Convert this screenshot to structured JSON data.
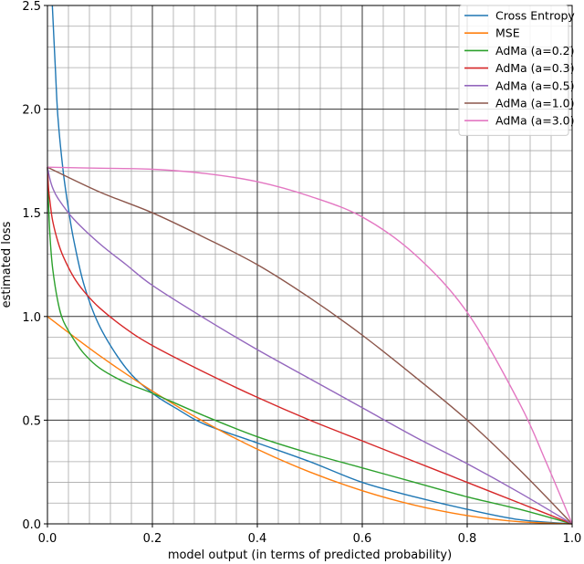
{
  "chart_data": {
    "type": "line",
    "title": "",
    "xlabel": "model output (in terms of predicted probability)",
    "ylabel": "estimated loss",
    "xlim": [
      0,
      1
    ],
    "ylim": [
      0,
      2.5
    ],
    "x_ticks": [
      0.0,
      0.2,
      0.4,
      0.6,
      0.8,
      1.0
    ],
    "x_tick_labels": [
      "0.0",
      "0.2",
      "0.4",
      "0.6",
      "0.8",
      "1.0"
    ],
    "y_ticks": [
      0.0,
      0.5,
      1.0,
      1.5,
      2.0,
      2.5
    ],
    "y_tick_labels": [
      "0.0",
      "0.5",
      "1.0",
      "1.5",
      "2.0",
      "2.5"
    ],
    "grid": "major and minor",
    "legend_position": "top-right",
    "series": [
      {
        "name": "Cross Entropy",
        "color": "#1f77b4",
        "x": [
          0.0093,
          0.015,
          0.02,
          0.03,
          0.04,
          0.05,
          0.07,
          0.1,
          0.15,
          0.2,
          0.25,
          0.3,
          0.4,
          0.5,
          0.6,
          0.7,
          0.8,
          0.9,
          1.0
        ],
        "y": [
          2.5,
          2.2,
          1.96,
          1.7,
          1.52,
          1.37,
          1.15,
          0.95,
          0.75,
          0.63,
          0.55,
          0.48,
          0.39,
          0.3,
          0.2,
          0.13,
          0.07,
          0.02,
          0.0
        ]
      },
      {
        "name": "MSE",
        "color": "#ff7f0e",
        "x": [
          0.0,
          0.1,
          0.2,
          0.3,
          0.4,
          0.5,
          0.6,
          0.7,
          0.8,
          0.9,
          1.0
        ],
        "y": [
          1.0,
          0.81,
          0.64,
          0.49,
          0.36,
          0.25,
          0.16,
          0.09,
          0.04,
          0.01,
          0.0
        ]
      },
      {
        "name": "AdMa (a=0.2)",
        "color": "#2ca02c",
        "x": [
          0.0,
          0.002,
          0.005,
          0.01,
          0.02,
          0.03,
          0.05,
          0.07,
          0.1,
          0.15,
          0.2,
          0.3,
          0.4,
          0.5,
          0.6,
          0.7,
          0.8,
          0.9,
          1.0
        ],
        "y": [
          1.72,
          1.55,
          1.38,
          1.23,
          1.07,
          0.98,
          0.89,
          0.82,
          0.75,
          0.68,
          0.63,
          0.52,
          0.42,
          0.34,
          0.27,
          0.2,
          0.13,
          0.07,
          0.0
        ]
      },
      {
        "name": "AdMa (a=0.3)",
        "color": "#d62728",
        "x": [
          0.0,
          0.002,
          0.005,
          0.01,
          0.02,
          0.03,
          0.05,
          0.07,
          0.1,
          0.15,
          0.2,
          0.3,
          0.4,
          0.5,
          0.6,
          0.7,
          0.8,
          0.9,
          1.0
        ],
        "y": [
          1.72,
          1.62,
          1.55,
          1.46,
          1.36,
          1.29,
          1.19,
          1.12,
          1.04,
          0.94,
          0.86,
          0.73,
          0.61,
          0.5,
          0.4,
          0.3,
          0.2,
          0.1,
          0.0
        ]
      },
      {
        "name": "AdMa (a=0.5)",
        "color": "#9467bd",
        "x": [
          0.0,
          0.005,
          0.01,
          0.02,
          0.05,
          0.1,
          0.15,
          0.2,
          0.3,
          0.4,
          0.5,
          0.6,
          0.7,
          0.8,
          0.9,
          1.0
        ],
        "y": [
          1.72,
          1.66,
          1.62,
          1.57,
          1.47,
          1.35,
          1.25,
          1.15,
          0.99,
          0.84,
          0.7,
          0.56,
          0.42,
          0.29,
          0.15,
          0.0
        ]
      },
      {
        "name": "AdMa (a=1.0)",
        "color": "#8c564b",
        "x": [
          0.0,
          0.1,
          0.2,
          0.3,
          0.4,
          0.5,
          0.6,
          0.7,
          0.8,
          0.9,
          1.0
        ],
        "y": [
          1.72,
          1.6,
          1.5,
          1.38,
          1.25,
          1.09,
          0.91,
          0.71,
          0.5,
          0.26,
          0.0
        ]
      },
      {
        "name": "AdMa (a=3.0)",
        "color": "#e377c2",
        "x": [
          0.0,
          0.1,
          0.2,
          0.3,
          0.4,
          0.5,
          0.6,
          0.7,
          0.8,
          0.9,
          0.95,
          1.0
        ],
        "y": [
          1.72,
          1.715,
          1.71,
          1.69,
          1.65,
          1.58,
          1.48,
          1.3,
          1.02,
          0.58,
          0.3,
          0.0
        ]
      }
    ]
  }
}
